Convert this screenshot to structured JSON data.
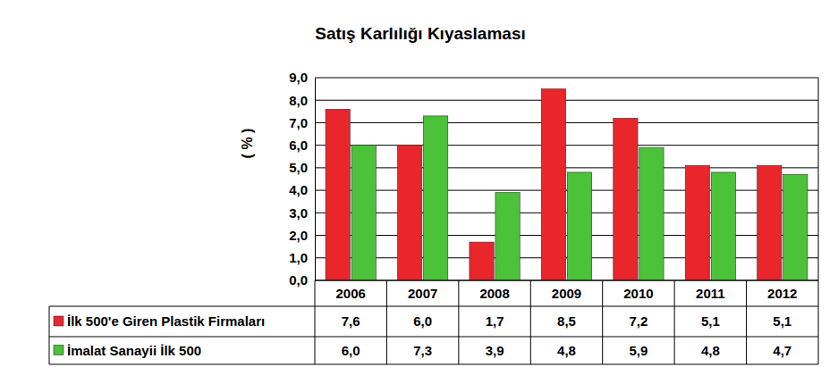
{
  "chart_data": {
    "type": "bar",
    "title": "Satış Karlılığı Kıyaslaması",
    "y_label": "( % )",
    "categories": [
      "2006",
      "2007",
      "2008",
      "2009",
      "2010",
      "2011",
      "2012"
    ],
    "series": [
      {
        "name": "İlk 500'e Giren Plastik Firmaları",
        "color": "#e8262c",
        "values": [
          7.6,
          6.0,
          1.7,
          8.5,
          7.2,
          5.1,
          5.1
        ],
        "value_labels": [
          "7,6",
          "6,0",
          "1,7",
          "8,5",
          "7,2",
          "5,1",
          "5,1"
        ]
      },
      {
        "name": "İmalat Sanayii İlk 500",
        "color": "#4cc13a",
        "values": [
          6.0,
          7.3,
          3.9,
          4.8,
          5.9,
          4.8,
          4.7
        ],
        "value_labels": [
          "6,0",
          "7,3",
          "3,9",
          "4,8",
          "5,9",
          "4,8",
          "4,7"
        ]
      }
    ],
    "ylim": [
      0,
      9
    ],
    "yticks": [
      {
        "value": 0,
        "label": "0,0"
      },
      {
        "value": 1,
        "label": "1,0"
      },
      {
        "value": 2,
        "label": "2,0"
      },
      {
        "value": 3,
        "label": "3,0"
      },
      {
        "value": 4,
        "label": "4,0"
      },
      {
        "value": 5,
        "label": "5,0"
      },
      {
        "value": 6,
        "label": "6,0"
      },
      {
        "value": 7,
        "label": "7,0"
      },
      {
        "value": 8,
        "label": "8,0"
      },
      {
        "value": 9,
        "label": "9,0"
      }
    ],
    "grid": true
  }
}
